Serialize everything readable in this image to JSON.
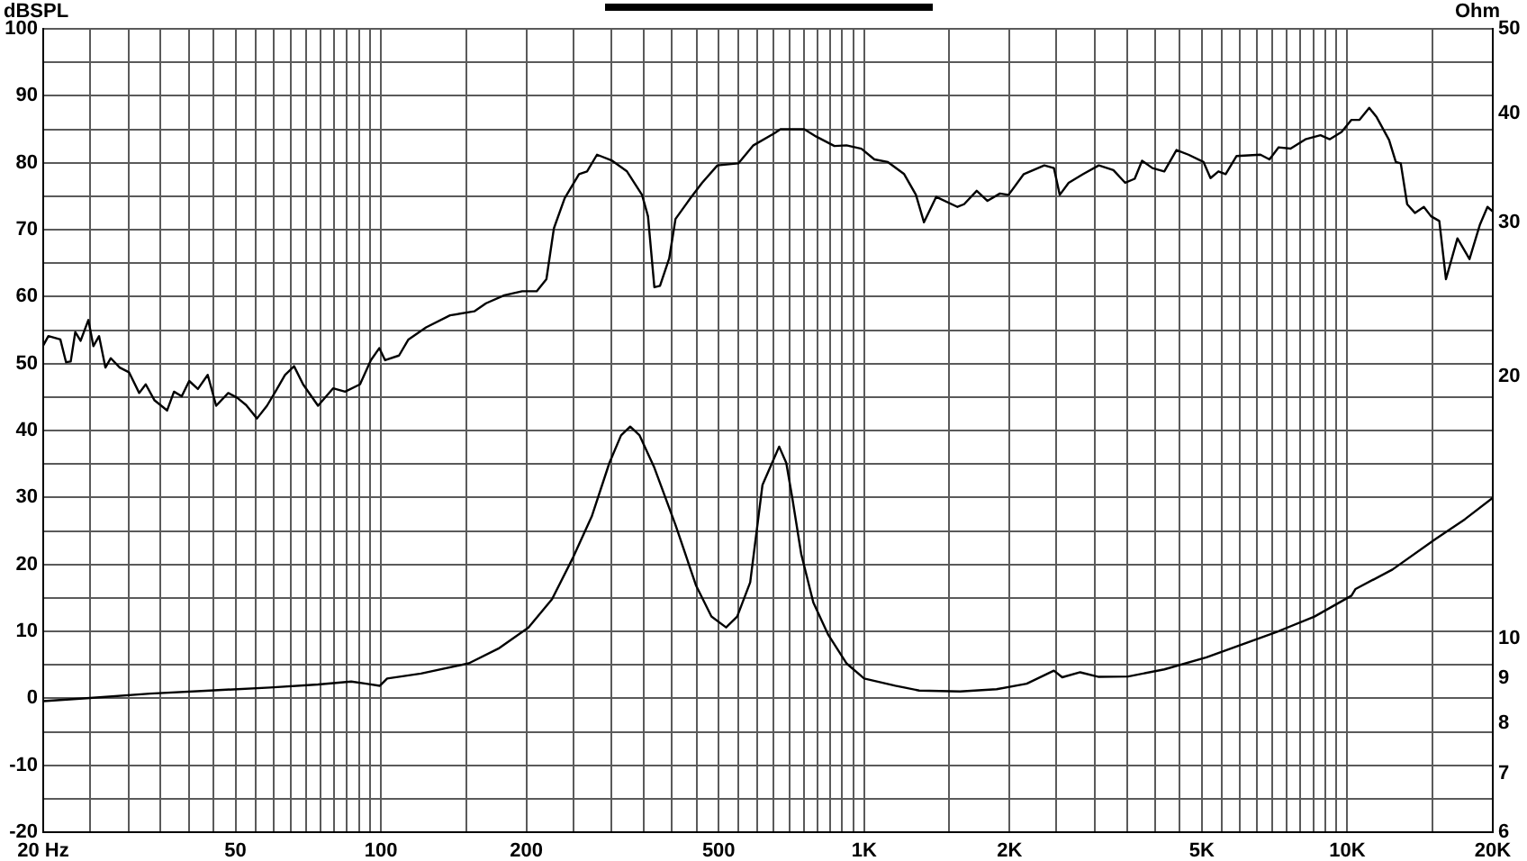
{
  "chart_data": {
    "type": "line",
    "ylabel": "Ohm",
    "y2label": "dBSPL",
    "series": [
      {
        "color": "#000000",
        "axis": "y2",
        "x": [
          20,
          20.5,
          21.7,
          22.3,
          22.8,
          23.3,
          23.9,
          24.8,
          25.4,
          26.1,
          26.9,
          27.6,
          28.8,
          30.1,
          31.6,
          32.6,
          34,
          36.1,
          37.3,
          38.7,
          40.1,
          41.8,
          43.8,
          45.6,
          48.3,
          50.4,
          52.6,
          55.4,
          58.1,
          60.7,
          63.3,
          66.1,
          69,
          74.1,
          79.6,
          84.3,
          90.5,
          95.3,
          99.2,
          102,
          109,
          114,
          124,
          139,
          156,
          165,
          180,
          196,
          210,
          220,
          228,
          240,
          257,
          267,
          280,
          301,
          323,
          347,
          357,
          368,
          378,
          395,
          407,
          437,
          462,
          497,
          549,
          590,
          652,
          671,
          752,
          796,
          868,
          919,
          987,
          1050,
          1120,
          1210,
          1280,
          1330,
          1410,
          1560,
          1610,
          1710,
          1800,
          1910,
          1990,
          2140,
          2360,
          2470,
          2540,
          2650,
          2840,
          3060,
          3280,
          3470,
          3630,
          3760,
          3950,
          4180,
          4430,
          4690,
          5040,
          5210,
          5410,
          5600,
          5900,
          6610,
          6900,
          7210,
          7630,
          8190,
          8800,
          9190,
          9730,
          10200,
          10600,
          11100,
          11500,
          12200,
          12600,
          12900,
          13300,
          13800,
          14400,
          14900,
          15500,
          16000,
          16900,
          17900,
          18800,
          19500,
          20000
        ],
        "values": [
          52.7,
          54.1,
          53.6,
          50.2,
          50.3,
          54.7,
          53.4,
          56.5,
          52.6,
          54.1,
          49.4,
          50.8,
          49.4,
          48.7,
          45.6,
          46.9,
          44.5,
          43,
          45.8,
          45.1,
          47.4,
          46.2,
          48.3,
          43.7,
          45.6,
          44.9,
          43.8,
          41.8,
          43.7,
          46,
          48.3,
          49.6,
          46.9,
          43.7,
          46.3,
          45.8,
          46.9,
          50.5,
          52.3,
          50.5,
          51.2,
          53.6,
          55.4,
          57.2,
          57.8,
          59,
          60.2,
          60.8,
          60.8,
          62.6,
          70.2,
          74.7,
          78.3,
          78.7,
          81.2,
          80.3,
          78.7,
          75.2,
          72,
          61.4,
          61.6,
          65.7,
          71.6,
          74.7,
          77,
          79.6,
          79.9,
          82.6,
          84.4,
          85,
          85,
          83.9,
          82.5,
          82.6,
          82.1,
          80.5,
          80.1,
          78.3,
          75.2,
          71.1,
          74.9,
          73.4,
          73.8,
          75.8,
          74.3,
          75.4,
          75.2,
          78.3,
          79.6,
          79.2,
          75.2,
          77,
          78.3,
          79.6,
          78.9,
          77,
          77.6,
          80.3,
          79.2,
          78.7,
          81.9,
          81.2,
          80.1,
          77.7,
          78.7,
          78.3,
          81,
          81.2,
          80.5,
          82.3,
          82.1,
          83.5,
          84.1,
          83.5,
          84.6,
          86.4,
          86.4,
          88.2,
          86.8,
          83.4,
          80.1,
          79.9,
          73.8,
          72.5,
          73.4,
          72,
          71.3,
          62.6,
          68.7,
          65.6,
          70.7,
          73.4,
          72.7
        ]
      },
      {
        "color": "#000000",
        "x": [
          20,
          25,
          33.3,
          44.3,
          59,
          74.1,
          86.8,
          93.2,
          99.5,
          103,
          121,
          152,
          175,
          202,
          226,
          250,
          273,
          297,
          314,
          328,
          343,
          368,
          407,
          449,
          483,
          518,
          546,
          581,
          616,
          667,
          690,
          710,
          741,
          785,
          843,
          919,
          1000,
          1160,
          1300,
          1580,
          1880,
          2170,
          2470,
          2570,
          2800,
          3060,
          3520,
          4180,
          5110,
          6070,
          7210,
          8550,
          10200,
          10400,
          12400,
          15200,
          17500,
          20000
        ],
        "values": [
          8.48,
          8.55,
          8.65,
          8.72,
          8.79,
          8.86,
          8.93,
          8.88,
          8.83,
          9.0,
          9.12,
          9.37,
          9.74,
          10.3,
          11.1,
          12.4,
          13.8,
          15.9,
          17.1,
          17.5,
          17.1,
          15.7,
          13.5,
          11.5,
          10.6,
          10.3,
          10.6,
          11.6,
          15,
          16.6,
          15.9,
          14.5,
          12.5,
          11,
          10.1,
          9.37,
          9,
          8.83,
          8.72,
          8.7,
          8.75,
          8.88,
          9.19,
          9.03,
          9.15,
          9.04,
          9.05,
          9.22,
          9.52,
          9.85,
          10.2,
          10.6,
          11.2,
          11.4,
          12,
          13,
          13.7,
          14.5
        ]
      }
    ],
    "xlim": [
      20,
      20000
    ],
    "xticks": [
      {
        "value": 20,
        "label": "20 Hz"
      },
      {
        "value": 25,
        "label": null
      },
      {
        "value": 30,
        "label": null
      },
      {
        "value": 35,
        "label": null
      },
      {
        "value": 40,
        "label": null
      },
      {
        "value": 45,
        "label": null
      },
      50,
      {
        "value": 55,
        "label": null
      },
      {
        "value": 60,
        "label": null
      },
      {
        "value": 65,
        "label": null
      },
      {
        "value": 70,
        "label": null
      },
      {
        "value": 75,
        "label": null
      },
      {
        "value": 80,
        "label": null
      },
      {
        "value": 85,
        "label": null
      },
      {
        "value": 90,
        "label": null
      },
      {
        "value": 95,
        "label": null
      },
      100,
      {
        "value": 150,
        "label": null
      },
      200,
      {
        "value": 250,
        "label": null
      },
      {
        "value": 300,
        "label": null
      },
      {
        "value": 350,
        "label": null
      },
      {
        "value": 400,
        "label": null
      },
      {
        "value": 450,
        "label": null
      },
      500,
      {
        "value": 550,
        "label": null
      },
      {
        "value": 600,
        "label": null
      },
      {
        "value": 650,
        "label": null
      },
      {
        "value": 700,
        "label": null
      },
      {
        "value": 750,
        "label": null
      },
      {
        "value": 800,
        "label": null
      },
      {
        "value": 850,
        "label": null
      },
      {
        "value": 900,
        "label": null
      },
      {
        "value": 950,
        "label": null
      },
      {
        "value": 1000,
        "label": "1K"
      },
      {
        "value": 1500,
        "label": null
      },
      {
        "value": 2000,
        "label": "2K"
      },
      {
        "value": 2500,
        "label": null
      },
      {
        "value": 3000,
        "label": null
      },
      {
        "value": 3500,
        "label": null
      },
      {
        "value": 4000,
        "label": null
      },
      {
        "value": 4500,
        "label": null
      },
      {
        "value": 5000,
        "label": "5K"
      },
      {
        "value": 5500,
        "label": null
      },
      {
        "value": 6000,
        "label": null
      },
      {
        "value": 6500,
        "label": null
      },
      {
        "value": 7000,
        "label": null
      },
      {
        "value": 7500,
        "label": null
      },
      {
        "value": 8000,
        "label": null
      },
      {
        "value": 8500,
        "label": null
      },
      {
        "value": 9000,
        "label": null
      },
      {
        "value": 9500,
        "label": null
      },
      {
        "value": 10000,
        "label": "10K"
      },
      {
        "value": 15000,
        "label": null
      },
      {
        "value": 20000,
        "label": "20K"
      }
    ],
    "ylim": [
      6,
      50
    ],
    "yticks": [
      6,
      7,
      8,
      9,
      10,
      20,
      30,
      40,
      50
    ],
    "y2lim": [
      -20,
      100
    ],
    "y2ticks": [
      -20,
      {
        "value": -15,
        "label": null
      },
      -10,
      {
        "value": -5,
        "label": null
      },
      0,
      {
        "value": 5,
        "label": null
      },
      10,
      {
        "value": 15,
        "label": null
      },
      20,
      {
        "value": 25,
        "label": null
      },
      30,
      {
        "value": 35,
        "label": null
      },
      40,
      {
        "value": 45,
        "label": null
      },
      50,
      {
        "value": 55,
        "label": null
      },
      60,
      {
        "value": 65,
        "label": null
      },
      70,
      {
        "value": 75,
        "label": null
      },
      80,
      {
        "value": 85,
        "label": null
      },
      90,
      {
        "value": 95,
        "label": null
      },
      100
    ],
    "log": "xy",
    "grid": true,
    "legend": false,
    "marker": "none",
    "line_style": "solid"
  }
}
